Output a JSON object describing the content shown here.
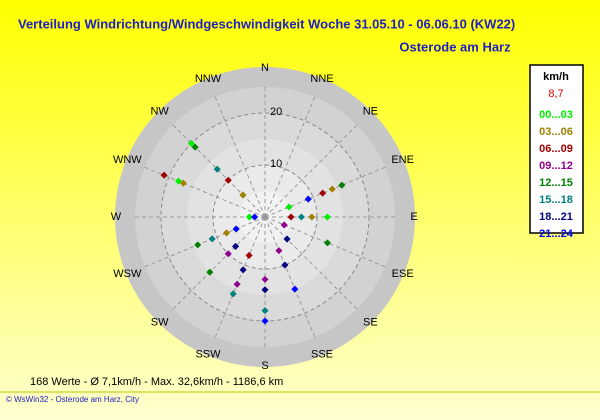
{
  "chart_data": {
    "type": "polar-scatter",
    "title": "Verteilung Windrichtung/Windgeschwindigkeit  Woche 31.05.10 - 06.06.10 (KW22)",
    "subtitle": "Osterode am Harz",
    "directions": [
      "N",
      "NNE",
      "NE",
      "ENE",
      "E",
      "ESE",
      "SE",
      "SSE",
      "S",
      "SSW",
      "SW",
      "WSW",
      "W",
      "WNW",
      "NW",
      "NNW"
    ],
    "rlim": [
      0,
      25
    ],
    "rticks": [
      10,
      20
    ],
    "legend": {
      "title": "km/h",
      "current": "8,7"
    },
    "series": [
      {
        "name": "00...03",
        "color": "#00ee00",
        "direction": [
          315,
          292.5,
          90,
          67.5,
          270
        ],
        "values": [
          20,
          18,
          12,
          5,
          3
        ]
      },
      {
        "name": "03...06",
        "color": "#a08000",
        "direction": [
          292.5,
          67.5,
          90,
          315,
          247.5
        ],
        "values": [
          17,
          14,
          9,
          6,
          8
        ]
      },
      {
        "name": "06...09",
        "color": "#a00000",
        "direction": [
          292.5,
          67.5,
          315,
          90,
          202.5
        ],
        "values": [
          21,
          12,
          10,
          5,
          8
        ]
      },
      {
        "name": "09...12",
        "color": "#900090",
        "direction": [
          180,
          157.5,
          202.5,
          112.5,
          225
        ],
        "values": [
          12,
          7,
          14,
          4,
          10
        ]
      },
      {
        "name": "12...15",
        "color": "#008000",
        "direction": [
          315,
          225,
          247.5,
          112.5,
          67.5
        ],
        "values": [
          19,
          15,
          14,
          13,
          16
        ]
      },
      {
        "name": "15...18",
        "color": "#008080",
        "direction": [
          180,
          202.5,
          247.5,
          90,
          315
        ],
        "values": [
          18,
          16,
          11,
          7,
          13
        ]
      },
      {
        "name": "18...21",
        "color": "#000080",
        "direction": [
          180,
          202.5,
          157.5,
          225,
          135
        ],
        "values": [
          14,
          11,
          10,
          8,
          6
        ]
      },
      {
        "name": "21...24",
        "color": "#0000ff",
        "direction": [
          180,
          157.5,
          247.5,
          270,
          67.5
        ],
        "values": [
          20,
          15,
          6,
          2,
          9
        ]
      }
    ],
    "stats": "168 Werte   -   Ø 7,1km/h  -  Max. 32,6km/h   -   1186,6 km",
    "footer": "© WsWin32  -  Osterode am Harz, City"
  }
}
